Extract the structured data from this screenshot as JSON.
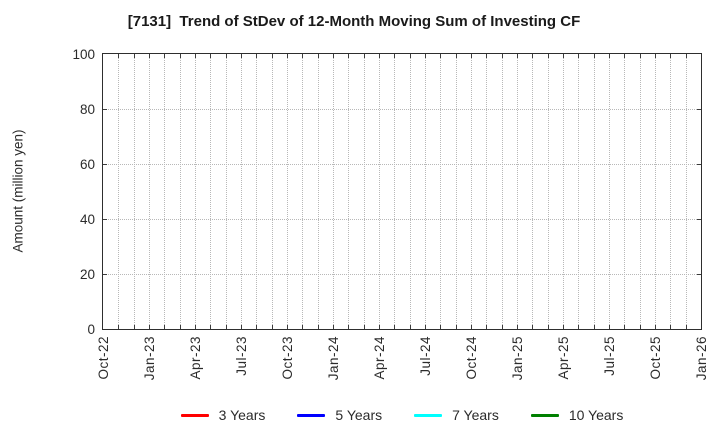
{
  "chart_data": {
    "type": "line",
    "title": "[7131]  Trend of StDev of 12-Month Moving Sum of Investing CF",
    "xlabel": "",
    "ylabel": "Amount (million yen)",
    "ylim": [
      0,
      100
    ],
    "yticks": [
      0,
      20,
      40,
      60,
      80,
      100
    ],
    "x_axis": {
      "start": "Oct-22",
      "end": "Jan-26",
      "total_months": 39,
      "tick_every_months": 3,
      "tick_labels": [
        "Oct-22",
        "Jan-23",
        "Apr-23",
        "Jul-23",
        "Oct-23",
        "Jan-24",
        "Apr-24",
        "Jul-24",
        "Oct-24",
        "Jan-25",
        "Apr-25",
        "Jul-25",
        "Oct-25",
        "Jan-26"
      ]
    },
    "grid": {
      "show": true,
      "line_style": "dotted",
      "color": "#b8b8b8",
      "vertical_interval": "monthly",
      "horizontal_interval": 20
    },
    "legend_position": "bottom-center",
    "series": [
      {
        "name": "3 Years",
        "color": "#ff0000",
        "values": []
      },
      {
        "name": "5 Years",
        "color": "#0000ff",
        "values": []
      },
      {
        "name": "7 Years",
        "color": "#00ffff",
        "values": []
      },
      {
        "name": "10 Years",
        "color": "#008000",
        "values": []
      }
    ]
  },
  "colors": {
    "background": "#ffffff",
    "frame": "#2e2e2e",
    "grid": "#b8b8b8",
    "tick": "#3c3c3c",
    "text": "#2b2b2b",
    "title": "#1a1a1a"
  }
}
